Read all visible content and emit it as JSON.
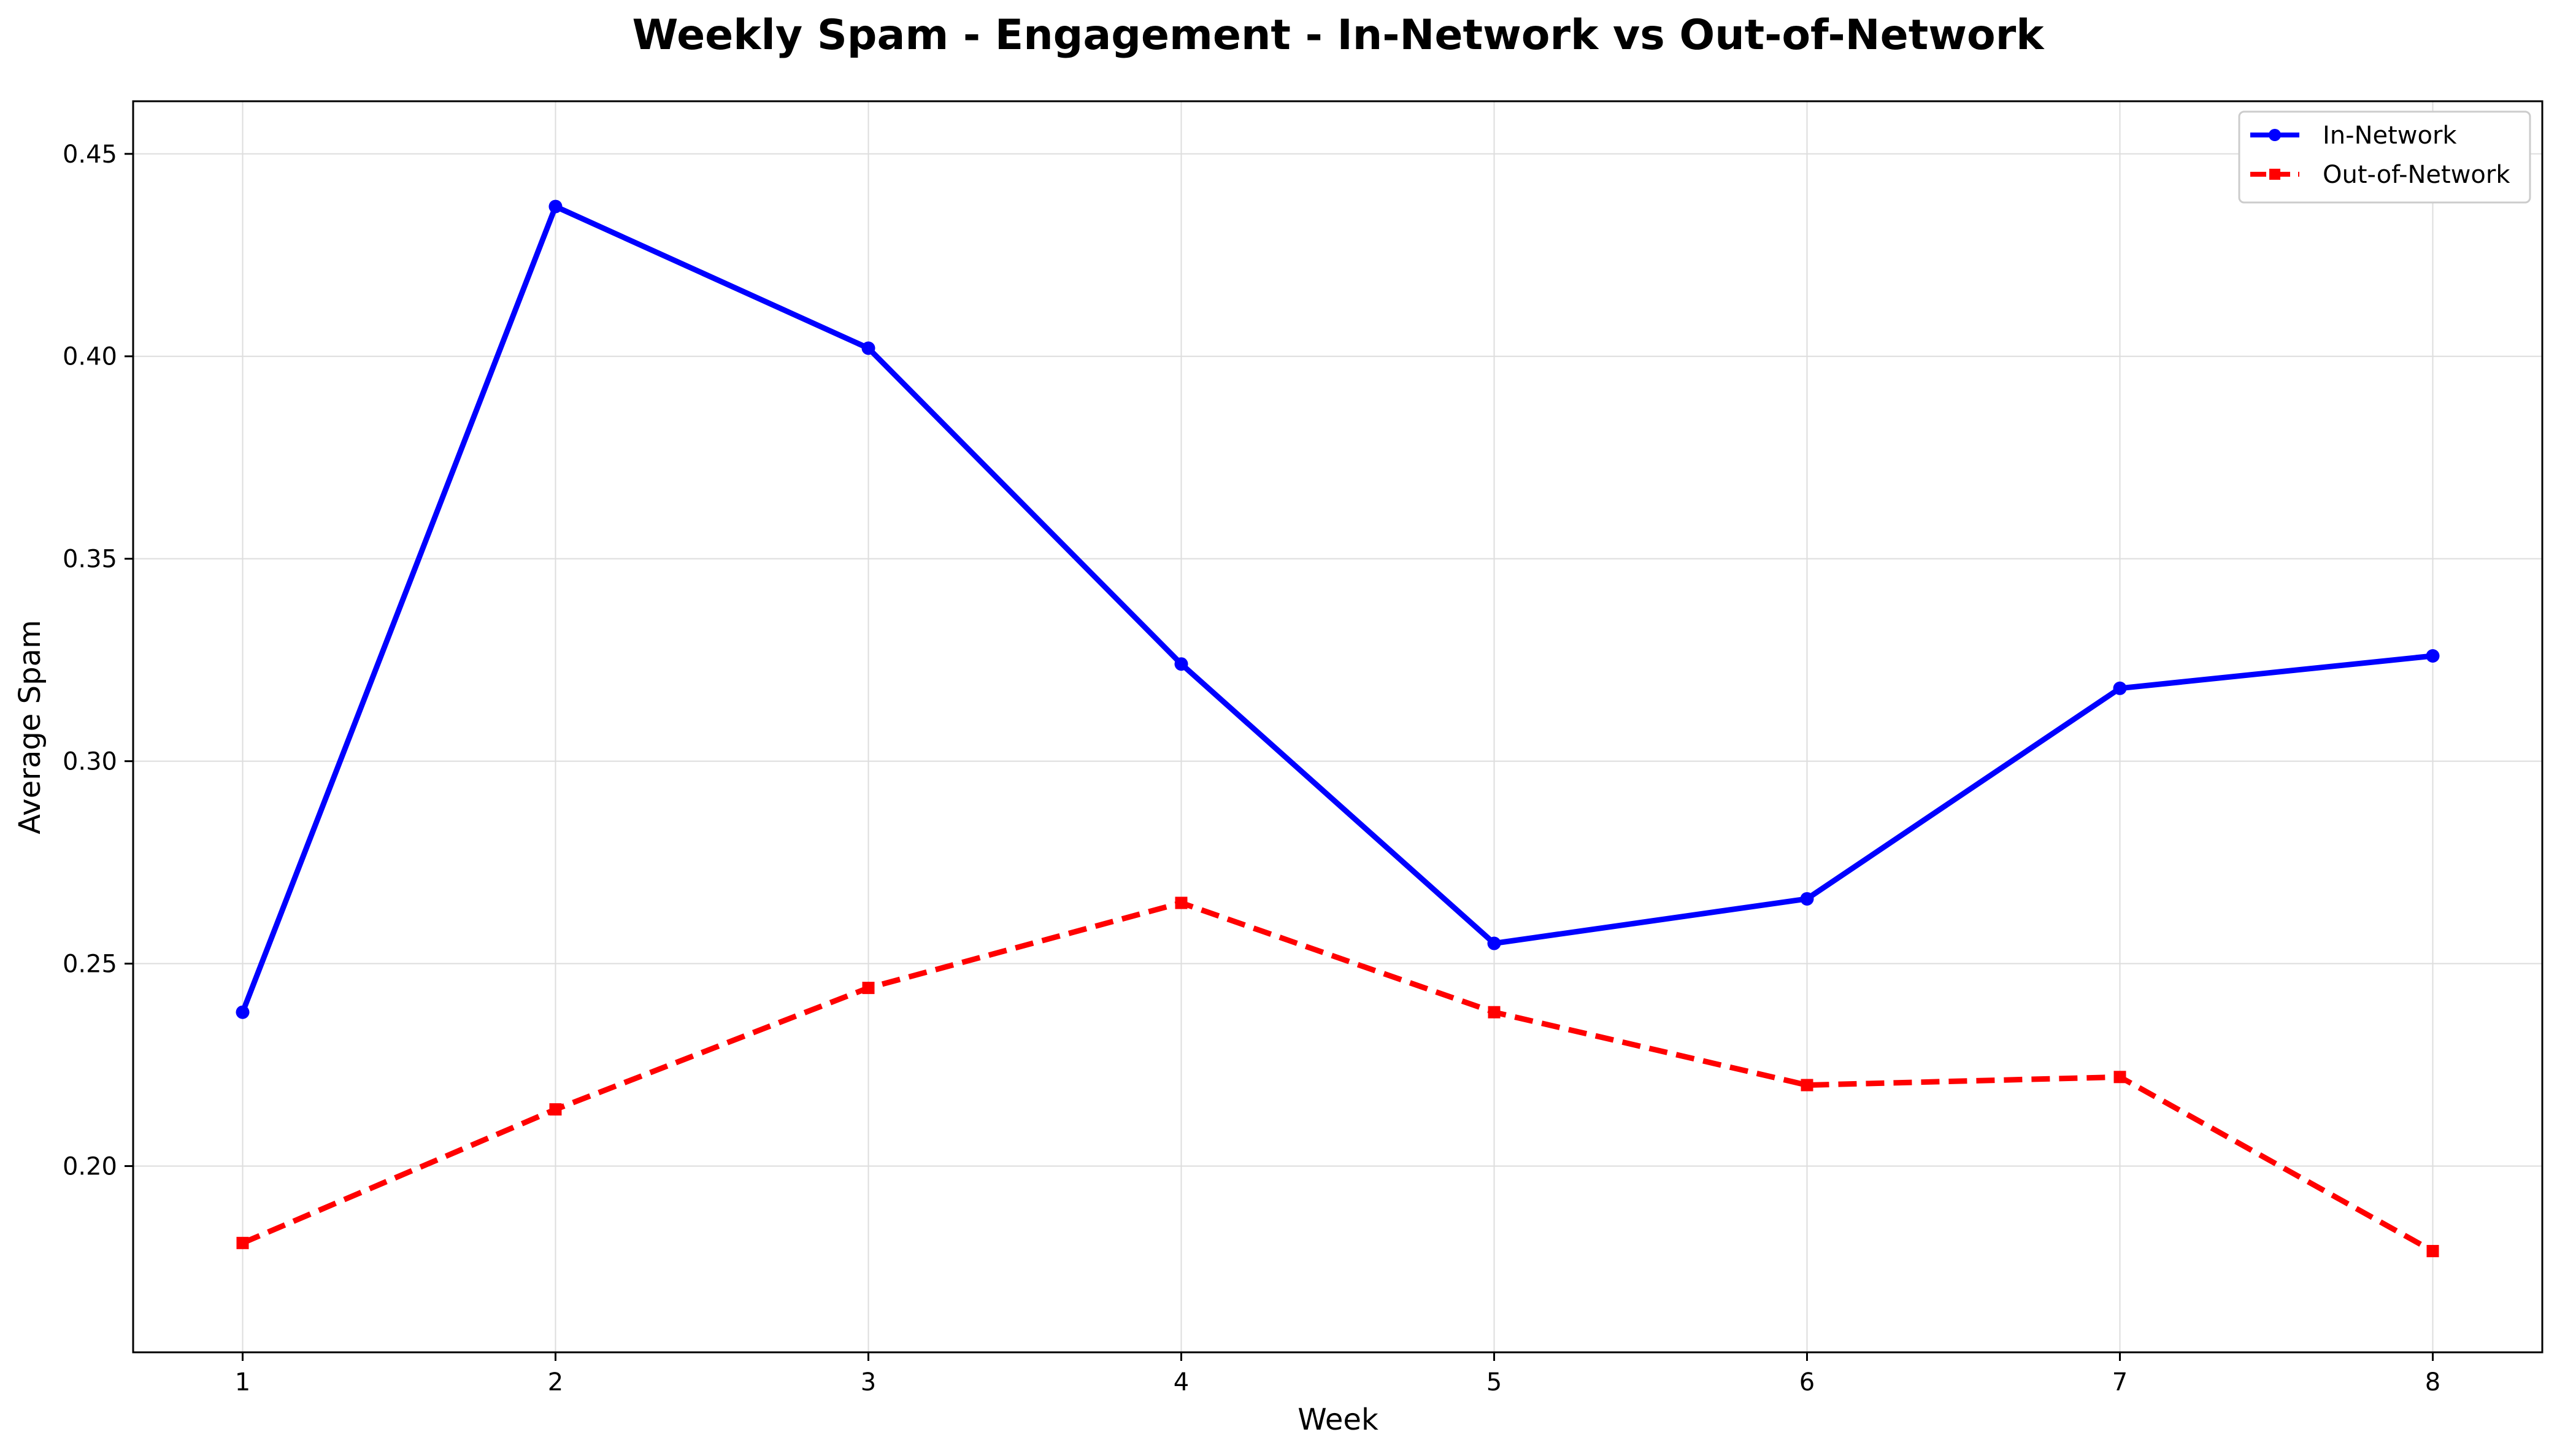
{
  "chart_data": {
    "type": "line",
    "title": "Weekly Spam - Engagement - In-Network vs Out-of-Network",
    "xlabel": "Week",
    "ylabel": "Average Spam",
    "x": [
      1,
      2,
      3,
      4,
      5,
      6,
      7,
      8
    ],
    "xlim": [
      0.65,
      8.35
    ],
    "ylim": [
      0.154,
      0.463
    ],
    "xticks": [
      "1",
      "2",
      "3",
      "4",
      "5",
      "6",
      "7",
      "8"
    ],
    "yticks": [
      "0.20",
      "0.25",
      "0.30",
      "0.35",
      "0.40",
      "0.45"
    ],
    "grid": true,
    "legend_position": "top-right",
    "series": [
      {
        "name": "In-Network",
        "values": [
          0.238,
          0.437,
          0.402,
          0.324,
          0.255,
          0.266,
          0.318,
          0.326
        ],
        "color": "#0000ff",
        "line_style": "solid",
        "marker": "circle"
      },
      {
        "name": "Out-of-Network",
        "values": [
          0.181,
          0.214,
          0.244,
          0.265,
          0.238,
          0.22,
          0.222,
          0.179
        ],
        "color": "#ff0000",
        "line_style": "dashed",
        "marker": "square"
      }
    ]
  }
}
